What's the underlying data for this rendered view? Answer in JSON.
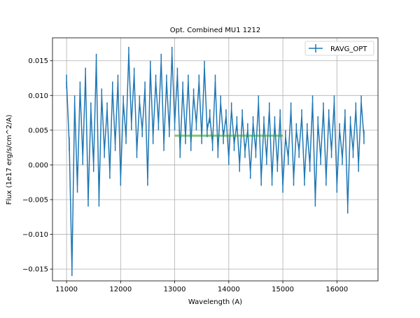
{
  "chart_data": {
    "type": "line",
    "title": "Opt. Combined MU1 1212",
    "xlabel": "Wavelength (A)",
    "ylabel": "Flux (1e17 erg/s/cm^2/A)",
    "xlim": [
      10740,
      16760
    ],
    "ylim": [
      -0.0167,
      0.0183
    ],
    "xticks": [
      11000,
      12000,
      13000,
      14000,
      15000,
      16000
    ],
    "xtick_labels": [
      "11000",
      "12000",
      "13000",
      "14000",
      "15000",
      "16000"
    ],
    "yticks": [
      0.015,
      0.01,
      0.005,
      0.0,
      -0.005,
      -0.01,
      -0.015
    ],
    "ytick_labels": [
      "0.015",
      "0.010",
      "0.005",
      "0.000",
      "−0.005",
      "−0.010",
      "−0.015"
    ],
    "grid": true,
    "legend": {
      "placement": "top-right",
      "entries": [
        "RAVG_OPT"
      ]
    },
    "series": [
      {
        "name": "RAVG_OPT",
        "color": "#1f77b4",
        "style": "errorbar",
        "x_start": 11000,
        "x_end": 16500,
        "yerr": 0.001,
        "values": [
          0.012,
          0.003,
          -0.015,
          0.009,
          -0.003,
          0.011,
          0.001,
          0.013,
          -0.005,
          0.008,
          0.0,
          0.015,
          -0.005,
          0.01,
          0.002,
          0.008,
          -0.001,
          0.011,
          0.003,
          0.012,
          -0.002,
          0.009,
          0.004,
          0.016,
          0.006,
          0.013,
          0.002,
          0.009,
          0.005,
          0.011,
          -0.002,
          0.014,
          0.004,
          0.012,
          0.006,
          0.015,
          0.003,
          0.012,
          0.005,
          0.016,
          0.006,
          0.013,
          0.002,
          0.011,
          0.004,
          0.012,
          0.003,
          0.01,
          0.006,
          0.012,
          0.004,
          0.014,
          0.005,
          0.007,
          0.003,
          0.012,
          0.002,
          0.009,
          0.004,
          0.007,
          0.001,
          0.008,
          0.003,
          0.006,
          0.0,
          0.007,
          0.002,
          0.005,
          -0.001,
          0.006,
          0.002,
          0.009,
          -0.002,
          0.006,
          0.001,
          0.008,
          -0.002,
          0.006,
          0.0,
          0.007,
          -0.003,
          0.004,
          0.001,
          0.008,
          -0.002,
          0.005,
          0.002,
          0.007,
          -0.002,
          0.005,
          0.0,
          0.009,
          -0.005,
          0.006,
          0.001,
          0.008,
          -0.002,
          0.007,
          0.002,
          0.009,
          -0.003,
          0.005,
          0.001,
          0.007,
          -0.006,
          0.006,
          0.002,
          0.008,
          0.0,
          0.009,
          0.004
        ]
      },
      {
        "name": "continuum",
        "color": "#2ca02c",
        "style": "line",
        "x": [
          13000,
          15000
        ],
        "y": [
          0.0042,
          0.0042
        ]
      }
    ]
  }
}
